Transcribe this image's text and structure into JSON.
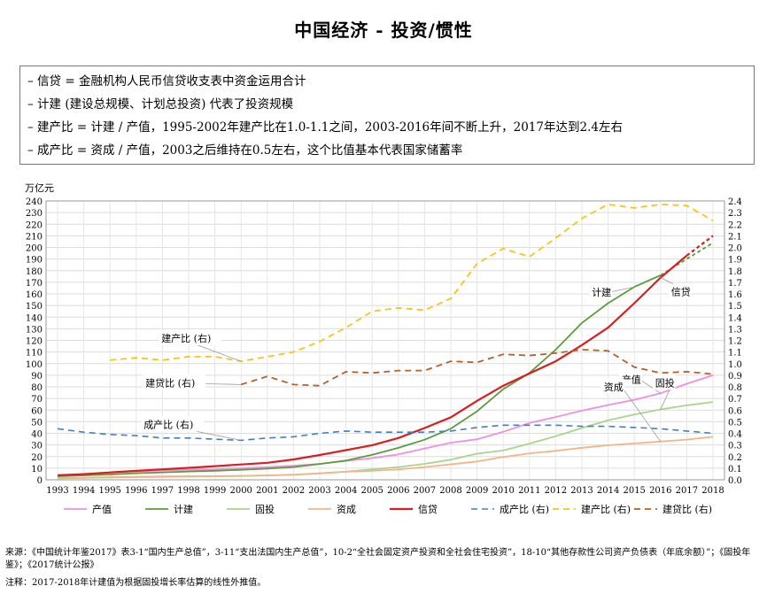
{
  "title": "中国经济 - 投资/惯性",
  "notes": [
    "信贷 = 金融机构人民币信贷收支表中资金运用合计",
    "计建 (建设总规模、计划总投资) 代表了投资规模",
    "建产比 = 计建 / 产值，1995-2002年建产比在1.0-1.1之间，2003-2016年间不断上升，2017年达到2.4左右",
    "成产比 = 资成 / 产值，2003之后维持在0.5左右，这个比值基本代表国家储蓄率"
  ],
  "source_text": "来源：《中国统计年鉴2017》表3-1“国内生产总值”，3-11“支出法国内生产总值”，10-2“全社会固定资产投资和全社会住宅投资”，18-10“其他存款性公司资产负债表（年底余额）”；《固投年鉴》；《2017统计公报》",
  "footnote_text": "注释：2017-2018年计建值为根据固投增长率估算的线性外推值。",
  "chart_data": {
    "type": "line",
    "y_left_unit": "万亿元",
    "y_left_range": [
      0,
      240
    ],
    "y_left_ticks": [
      "0",
      "10",
      "20",
      "30",
      "40",
      "50",
      "60",
      "70",
      "80",
      "90",
      "100",
      "110",
      "120",
      "130",
      "140",
      "150",
      "160",
      "170",
      "180",
      "190",
      "200",
      "210",
      "220",
      "230",
      "240"
    ],
    "y_right_range": [
      0.0,
      2.4
    ],
    "y_right_ticks": [
      "0.0",
      "0.1",
      "0.2",
      "0.3",
      "0.4",
      "0.5",
      "0.6",
      "0.7",
      "0.8",
      "0.9",
      "1.0",
      "1.1",
      "1.2",
      "1.3",
      "1.4",
      "1.5",
      "1.6",
      "1.7",
      "1.8",
      "1.9",
      "2.0",
      "2.1",
      "2.2",
      "2.3",
      "2.4"
    ],
    "x": [
      "1993",
      "1994",
      "1995",
      "1996",
      "1997",
      "1998",
      "1999",
      "2000",
      "2001",
      "2002",
      "2003",
      "2004",
      "2005",
      "2006",
      "2007",
      "2008",
      "2009",
      "2010",
      "2011",
      "2012",
      "2013",
      "2014",
      "2015",
      "2016",
      "2017",
      "2018"
    ],
    "grid": true,
    "legend_position": "bottom",
    "series": [
      {
        "name": "产值",
        "axis": "left",
        "color": "#f08ee0",
        "dash": "solid",
        "width": 1.8,
        "values": [
          3.5,
          4.9,
          6.1,
          7.2,
          8.0,
          8.5,
          9.1,
          10.0,
          11.0,
          12.2,
          13.7,
          16.2,
          18.7,
          21.9,
          27.0,
          31.9,
          34.9,
          41.3,
          48.9,
          54.0,
          59.5,
          64.4,
          68.9,
          74.4,
          82.7,
          90.0
        ]
      },
      {
        "name": "计建",
        "axis": "left",
        "color": "#5a9c3c",
        "dash": "solid",
        "width": 1.8,
        "values": [
          3.0,
          3.8,
          4.6,
          5.6,
          6.4,
          7.2,
          7.8,
          8.6,
          9.6,
          11.0,
          13.6,
          16.5,
          21.5,
          27.5,
          34.5,
          44.0,
          59.0,
          78.0,
          92.0,
          112.0,
          135.0,
          152.0,
          166.0,
          176.0,
          null,
          null
        ]
      },
      {
        "name": "计建外推",
        "axis": "left",
        "color": "#5a9c3c",
        "dash": "4,3",
        "width": 1.8,
        "legend": false,
        "values": [
          null,
          null,
          null,
          null,
          null,
          null,
          null,
          null,
          null,
          null,
          null,
          null,
          null,
          null,
          null,
          null,
          null,
          null,
          null,
          null,
          null,
          null,
          null,
          176.0,
          190.0,
          204.0
        ]
      },
      {
        "name": "固投",
        "axis": "left",
        "color": "#a8d48c",
        "dash": "solid",
        "width": 1.8,
        "values": [
          1.3,
          1.7,
          2.0,
          2.3,
          2.5,
          2.8,
          3.0,
          3.3,
          3.7,
          4.3,
          5.6,
          7.0,
          8.9,
          11.0,
          13.7,
          17.3,
          22.5,
          25.2,
          31.2,
          37.5,
          44.6,
          51.2,
          56.2,
          60.6,
          64.1,
          67.0
        ]
      },
      {
        "name": "资成",
        "axis": "left",
        "color": "#f3b48a",
        "dash": "solid",
        "width": 1.8,
        "values": [
          1.5,
          1.8,
          2.4,
          2.7,
          2.9,
          3.1,
          3.2,
          3.4,
          3.8,
          4.4,
          5.5,
          6.9,
          7.7,
          8.8,
          11.0,
          13.3,
          15.8,
          19.6,
          22.8,
          24.9,
          27.6,
          29.7,
          31.3,
          32.9,
          34.6,
          37.0
        ]
      },
      {
        "name": "信贷",
        "axis": "left",
        "color": "#d81e1e",
        "dash": "solid",
        "width": 2.2,
        "values": [
          4.0,
          4.9,
          6.3,
          7.7,
          9.0,
          10.3,
          11.7,
          13.2,
          14.6,
          17.5,
          21.3,
          25.5,
          29.8,
          36.0,
          44.6,
          53.8,
          68.0,
          81.0,
          91.5,
          102.0,
          116.0,
          131.0,
          152.0,
          174.0,
          193.0,
          null
        ]
      },
      {
        "name": "信贷外推",
        "axis": "left",
        "color": "#d81e1e",
        "dash": "4,3",
        "width": 2.2,
        "legend": false,
        "values": [
          null,
          null,
          null,
          null,
          null,
          null,
          null,
          null,
          null,
          null,
          null,
          null,
          null,
          null,
          null,
          null,
          null,
          null,
          null,
          null,
          null,
          null,
          null,
          null,
          193.0,
          210.0
        ]
      },
      {
        "name": "成产比 (右)",
        "axis": "right",
        "color": "#3f7fc3",
        "dash": "7,5",
        "width": 1.6,
        "values": [
          0.44,
          0.41,
          0.39,
          0.38,
          0.36,
          0.36,
          0.35,
          0.34,
          0.36,
          0.37,
          0.4,
          0.42,
          0.41,
          0.41,
          0.41,
          0.42,
          0.45,
          0.47,
          0.47,
          0.47,
          0.46,
          0.46,
          0.45,
          0.44,
          0.42,
          0.4
        ]
      },
      {
        "name": "建产比 (右)",
        "axis": "right",
        "color": "#f5c518",
        "dash": "7,5",
        "width": 1.8,
        "values": [
          null,
          null,
          1.03,
          1.05,
          1.03,
          1.06,
          1.06,
          1.02,
          1.06,
          1.1,
          1.19,
          1.31,
          1.45,
          1.48,
          1.46,
          1.56,
          1.86,
          1.99,
          1.92,
          2.08,
          2.25,
          2.37,
          2.34,
          2.37,
          2.36,
          2.23
        ]
      },
      {
        "name": "建贷比 (右)",
        "axis": "right",
        "color": "#b4602a",
        "dash": "7,5",
        "width": 1.8,
        "values": [
          null,
          null,
          null,
          null,
          null,
          null,
          null,
          0.82,
          0.89,
          0.82,
          0.81,
          0.93,
          0.92,
          0.94,
          0.94,
          1.02,
          1.01,
          1.08,
          1.07,
          1.09,
          1.12,
          1.11,
          0.97,
          0.92,
          0.93,
          0.91
        ]
      }
    ],
    "annotations": [
      {
        "text": "建产比 (右)",
        "series": "建产比 (右)",
        "year": "2000"
      },
      {
        "text": "建贷比 (右)",
        "series": "建贷比 (右)",
        "year": "2000"
      },
      {
        "text": "成产比 (右)",
        "series": "成产比 (右)",
        "year": "2000"
      },
      {
        "text": "计建",
        "series": "计建",
        "year": "2015"
      },
      {
        "text": "信贷",
        "series": "信贷",
        "year": "2016"
      },
      {
        "text": "产值",
        "series": "产值",
        "year": "2016"
      },
      {
        "text": "固投",
        "series": "固投",
        "year": "2016"
      },
      {
        "text": "资成",
        "series": "资成",
        "year": "2016"
      }
    ]
  }
}
